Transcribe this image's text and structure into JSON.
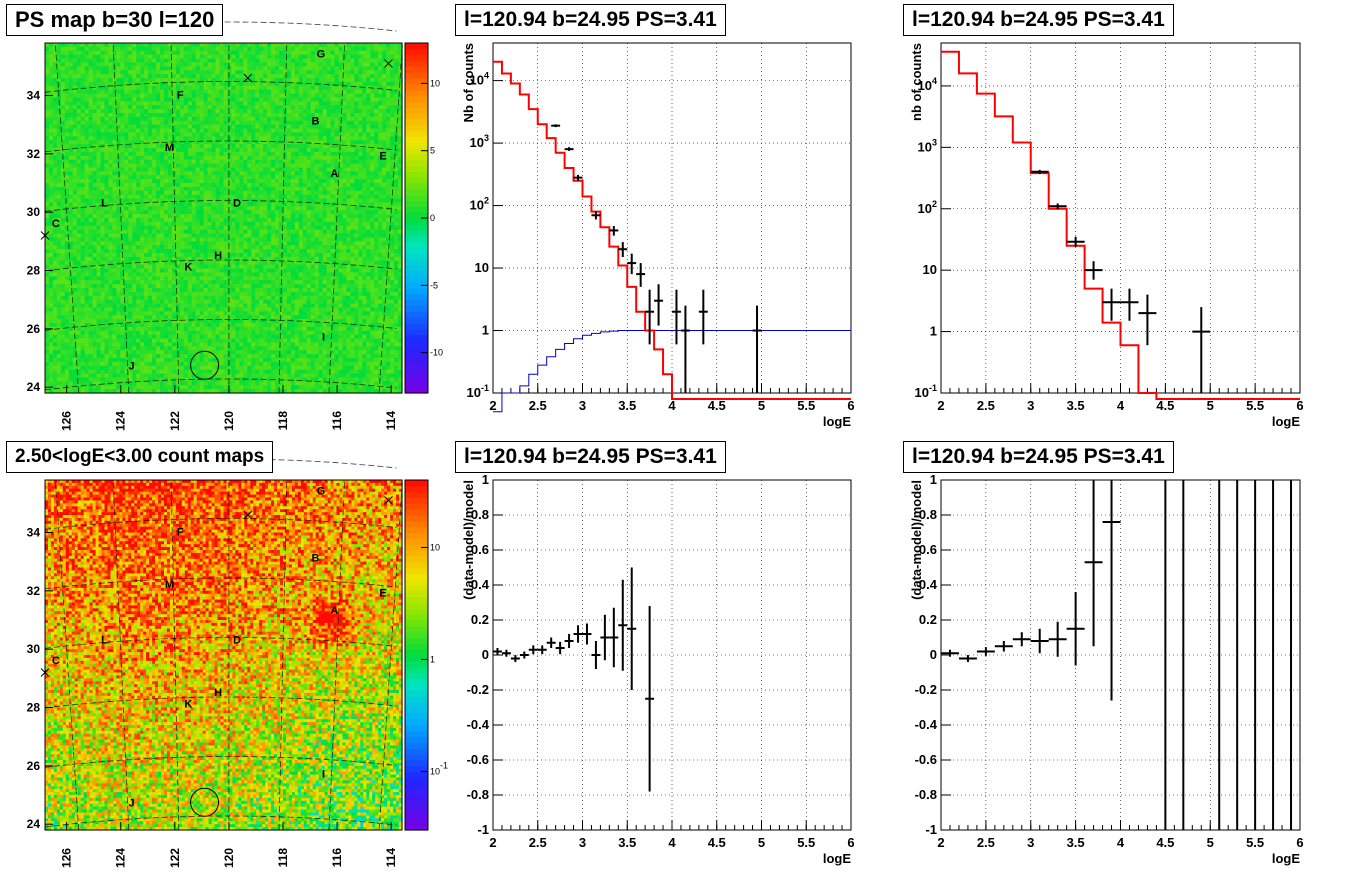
{
  "panels": {
    "ps_map_title": "PS map b=30 l=120",
    "count_map_title": "2.50<logE<3.00 count maps",
    "spectrum_title": "l=120.94 b=24.95 PS=3.41"
  },
  "maps": [
    {
      "name": "ps-map",
      "title": "PS map b=30 l=120",
      "x_ticks": [
        "126",
        "124",
        "122",
        "120",
        "118",
        "116",
        "114"
      ],
      "y_ticks": [
        "24",
        "26",
        "28",
        "30",
        "32",
        "34"
      ],
      "colorbar_ticks": [
        "10",
        "5",
        "0",
        "-5",
        "-10"
      ],
      "colorbar_scale": "linear",
      "colorbar_range": [
        -13,
        13
      ],
      "field_value": 1.0,
      "sources": [
        {
          "label": "G",
          "l": 116.6,
          "b": 35.3
        },
        {
          "label": "F",
          "l": 121.8,
          "b": 33.9
        },
        {
          "label": "B",
          "l": 116.8,
          "b": 33.0
        },
        {
          "label": "M",
          "l": 122.2,
          "b": 32.1
        },
        {
          "label": "E",
          "l": 114.3,
          "b": 31.8
        },
        {
          "label": "A",
          "l": 116.1,
          "b": 31.2
        },
        {
          "label": "D",
          "l": 119.7,
          "b": 30.2
        },
        {
          "label": "L",
          "l": 124.6,
          "b": 30.2
        },
        {
          "label": "C",
          "l": 126.4,
          "b": 29.5
        },
        {
          "label": "H",
          "l": 120.4,
          "b": 28.4
        },
        {
          "label": "K",
          "l": 121.5,
          "b": 28.0
        },
        {
          "label": "I",
          "l": 116.5,
          "b": 25.6
        },
        {
          "label": "J",
          "l": 123.6,
          "b": 24.6
        }
      ],
      "crosses": [
        {
          "l": 119.3,
          "b": 34.6
        },
        {
          "l": 114.1,
          "b": 35.1
        },
        {
          "l": 126.8,
          "b": 29.2
        }
      ],
      "circle": {
        "l": 120.9,
        "b": 24.75
      }
    },
    {
      "name": "count-map",
      "title": "2.50<logE<3.00 count maps",
      "x_ticks": [
        "126",
        "124",
        "122",
        "120",
        "118",
        "116",
        "114"
      ],
      "y_ticks": [
        "24",
        "26",
        "28",
        "30",
        "32",
        "34"
      ],
      "colorbar_ticks": [
        "10",
        "1",
        "10^-1"
      ],
      "colorbar_scale": "log",
      "colorbar_range": [
        0.03,
        40
      ],
      "sources": [
        {
          "label": "G",
          "l": 116.6,
          "b": 35.3
        },
        {
          "label": "F",
          "l": 121.8,
          "b": 33.9
        },
        {
          "label": "B",
          "l": 116.8,
          "b": 33.0
        },
        {
          "label": "M",
          "l": 122.2,
          "b": 32.1
        },
        {
          "label": "E",
          "l": 114.3,
          "b": 31.8
        },
        {
          "label": "A",
          "l": 116.1,
          "b": 31.2
        },
        {
          "label": "D",
          "l": 119.7,
          "b": 30.2
        },
        {
          "label": "L",
          "l": 124.6,
          "b": 30.2
        },
        {
          "label": "C",
          "l": 126.4,
          "b": 29.5
        },
        {
          "label": "H",
          "l": 120.4,
          "b": 28.4
        },
        {
          "label": "K",
          "l": 121.5,
          "b": 28.0
        },
        {
          "label": "I",
          "l": 116.5,
          "b": 25.6
        },
        {
          "label": "J",
          "l": 123.6,
          "b": 24.6
        }
      ],
      "crosses": [
        {
          "l": 119.3,
          "b": 34.6
        },
        {
          "l": 114.1,
          "b": 35.1
        },
        {
          "l": 126.8,
          "b": 29.2
        }
      ],
      "circle": {
        "l": 120.9,
        "b": 24.75
      }
    }
  ],
  "chart_data": [
    {
      "name": "counts-spectrum-1",
      "type": "line",
      "title": "l=120.94 b=24.95 PS=3.41",
      "xlabel": "logE",
      "ylabel": "Nb of counts",
      "xlim": [
        2,
        6
      ],
      "ylim": [
        0.1,
        40000
      ],
      "yscale": "log",
      "grid": true,
      "x_ticks": [
        "2",
        "2.5",
        "3",
        "3.5",
        "4",
        "4.5",
        "5",
        "5.5",
        "6"
      ],
      "y_ticks": [
        {
          "v": 0.1,
          "label": "10^-1"
        },
        {
          "v": 1,
          "label": "1"
        },
        {
          "v": 10,
          "label": "10"
        },
        {
          "v": 100,
          "label": "10^2"
        },
        {
          "v": 1000,
          "label": "10^3"
        },
        {
          "v": 10000,
          "label": "10^4"
        }
      ],
      "bin_edges": [
        2.0,
        2.1,
        2.2,
        2.3,
        2.4,
        2.5,
        2.6,
        2.7,
        2.8,
        2.9,
        3.0,
        3.1,
        3.2,
        3.3,
        3.4,
        3.5,
        3.6,
        3.7,
        3.8,
        3.9,
        4.0,
        4.1,
        4.2,
        4.3,
        4.4,
        4.5,
        4.6,
        4.7,
        4.8,
        4.9,
        5.0,
        5.1,
        5.2,
        5.3,
        5.4,
        5.5,
        5.6,
        5.7,
        5.8,
        5.9,
        6.0
      ],
      "model": [
        20000,
        13000,
        9000,
        6000,
        3500,
        2000,
        1200,
        700,
        400,
        250,
        140,
        80,
        45,
        22,
        11,
        5,
        2,
        1,
        0.5,
        0.2,
        0.08,
        0.08,
        0.08,
        0.08,
        0.08,
        0.08,
        0.08,
        0.08,
        0.08,
        0.08,
        0.08,
        0.08,
        0.08,
        0.08,
        0.08,
        0.08,
        0.08,
        0.08,
        0.08,
        0.08
      ],
      "psf": [
        0.01,
        0.1,
        0.1,
        0.13,
        0.2,
        0.28,
        0.38,
        0.5,
        0.62,
        0.74,
        0.84,
        0.9,
        0.95,
        0.98,
        1,
        1,
        1,
        1,
        1,
        1,
        1,
        1,
        1,
        1,
        1,
        1,
        1,
        1,
        1,
        1,
        1,
        1,
        1,
        1,
        1,
        1,
        1,
        1,
        1,
        1
      ],
      "data": [
        {
          "x": 2.95,
          "y": 280,
          "xe": 0.05,
          "lo": 250,
          "hi": 310
        },
        {
          "x": 2.7,
          "y": 1900,
          "xe": 0.05,
          "lo": 1800,
          "hi": 2000
        },
        {
          "x": 2.85,
          "y": 800,
          "xe": 0.05,
          "lo": 750,
          "hi": 860
        },
        {
          "x": 3.15,
          "y": 70,
          "xe": 0.05,
          "lo": 60,
          "hi": 80
        },
        {
          "x": 3.35,
          "y": 40,
          "xe": 0.05,
          "lo": 33,
          "hi": 47
        },
        {
          "x": 3.45,
          "y": 20,
          "xe": 0.05,
          "lo": 15,
          "hi": 26
        },
        {
          "x": 3.55,
          "y": 12,
          "xe": 0.05,
          "lo": 8,
          "hi": 17
        },
        {
          "x": 3.65,
          "y": 8,
          "xe": 0.05,
          "lo": 5,
          "hi": 12
        },
        {
          "x": 3.75,
          "y": 2,
          "xe": 0.05,
          "lo": 0.6,
          "hi": 4.5
        },
        {
          "x": 3.85,
          "y": 3,
          "xe": 0.05,
          "lo": 1.2,
          "hi": 5.5
        },
        {
          "x": 4.05,
          "y": 2,
          "xe": 0.05,
          "lo": 0.6,
          "hi": 4.5
        },
        {
          "x": 4.15,
          "y": 1,
          "xe": 0.05,
          "lo": 0.1,
          "hi": 2.5
        },
        {
          "x": 4.35,
          "y": 2,
          "xe": 0.05,
          "lo": 0.6,
          "hi": 4.5
        },
        {
          "x": 4.95,
          "y": 1,
          "xe": 0.05,
          "lo": 0.1,
          "hi": 2.5
        }
      ]
    },
    {
      "name": "counts-spectrum-2",
      "type": "line",
      "title": "l=120.94 b=24.95 PS=3.41",
      "xlabel": "logE",
      "ylabel": "nb of counts",
      "xlim": [
        2,
        6
      ],
      "ylim": [
        0.1,
        50000
      ],
      "yscale": "log",
      "grid": true,
      "x_ticks": [
        "2",
        "2.5",
        "3",
        "3.5",
        "4",
        "4.5",
        "5",
        "5.5",
        "6"
      ],
      "y_ticks": [
        {
          "v": 0.1,
          "label": "10^-1"
        },
        {
          "v": 1,
          "label": "1"
        },
        {
          "v": 10,
          "label": "10"
        },
        {
          "v": 100,
          "label": "10^2"
        },
        {
          "v": 1000,
          "label": "10^3"
        },
        {
          "v": 10000,
          "label": "10^4"
        }
      ],
      "bin_edges": [
        2.0,
        2.2,
        2.4,
        2.6,
        2.8,
        3.0,
        3.2,
        3.4,
        3.6,
        3.8,
        4.0,
        4.2,
        4.4,
        4.6,
        4.8,
        5.0,
        5.2,
        5.4,
        5.6,
        5.8,
        6.0
      ],
      "model": [
        36000,
        16000,
        7500,
        3200,
        1200,
        380,
        100,
        25,
        5,
        1.4,
        0.6,
        0.1,
        0.08,
        0.08,
        0.08,
        0.08,
        0.08,
        0.08,
        0.08,
        0.08
      ],
      "data": [
        {
          "x": 3.1,
          "y": 400,
          "xe": 0.1,
          "lo": 370,
          "hi": 430
        },
        {
          "x": 3.3,
          "y": 110,
          "xe": 0.1,
          "lo": 98,
          "hi": 122
        },
        {
          "x": 3.5,
          "y": 29,
          "xe": 0.1,
          "lo": 24,
          "hi": 35
        },
        {
          "x": 3.7,
          "y": 10,
          "xe": 0.1,
          "lo": 7,
          "hi": 14
        },
        {
          "x": 3.9,
          "y": 3,
          "xe": 0.1,
          "lo": 1.5,
          "hi": 5
        },
        {
          "x": 4.1,
          "y": 3,
          "xe": 0.1,
          "lo": 1.5,
          "hi": 5
        },
        {
          "x": 4.3,
          "y": 2,
          "xe": 0.1,
          "lo": 0.6,
          "hi": 4
        },
        {
          "x": 4.9,
          "y": 1,
          "xe": 0.1,
          "lo": 0.1,
          "hi": 2.5
        }
      ]
    },
    {
      "name": "residuals-1",
      "type": "scatter",
      "title": "l=120.94 b=24.95 PS=3.41",
      "xlabel": "logE",
      "ylabel": "(data-model)/model",
      "xlim": [
        2,
        6
      ],
      "ylim": [
        -1,
        1
      ],
      "grid": true,
      "x_ticks": [
        "2",
        "2.5",
        "3",
        "3.5",
        "4",
        "4.5",
        "5",
        "5.5",
        "6"
      ],
      "y_ticks": [
        "-1",
        "-0.8",
        "-0.6",
        "-0.4",
        "-0.2",
        "0",
        "0.2",
        "0.4",
        "0.6",
        "0.8",
        "1"
      ],
      "data": [
        {
          "x": 2.05,
          "y": 0.02,
          "xe": 0.05,
          "err": 0.02
        },
        {
          "x": 2.15,
          "y": 0.01,
          "xe": 0.05,
          "err": 0.02
        },
        {
          "x": 2.25,
          "y": -0.02,
          "xe": 0.05,
          "err": 0.02
        },
        {
          "x": 2.35,
          "y": 0.0,
          "xe": 0.05,
          "err": 0.02
        },
        {
          "x": 2.45,
          "y": 0.03,
          "xe": 0.05,
          "err": 0.025
        },
        {
          "x": 2.55,
          "y": 0.03,
          "xe": 0.05,
          "err": 0.025
        },
        {
          "x": 2.65,
          "y": 0.07,
          "xe": 0.05,
          "err": 0.03
        },
        {
          "x": 2.75,
          "y": 0.04,
          "xe": 0.05,
          "err": 0.035
        },
        {
          "x": 2.85,
          "y": 0.08,
          "xe": 0.05,
          "err": 0.04
        },
        {
          "x": 2.95,
          "y": 0.12,
          "xe": 0.05,
          "err": 0.05
        },
        {
          "x": 3.05,
          "y": 0.12,
          "xe": 0.05,
          "err": 0.06
        },
        {
          "x": 3.15,
          "y": 0.0,
          "xe": 0.05,
          "err": 0.08
        },
        {
          "x": 3.25,
          "y": 0.1,
          "xe": 0.05,
          "err": 0.13
        },
        {
          "x": 3.35,
          "y": 0.1,
          "xe": 0.05,
          "err": 0.17
        },
        {
          "x": 3.45,
          "y": 0.17,
          "xe": 0.05,
          "err": 0.26
        },
        {
          "x": 3.55,
          "y": 0.15,
          "xe": 0.05,
          "err": 0.35
        },
        {
          "x": 3.75,
          "y": -0.25,
          "xe": 0.05,
          "err": 0.53
        }
      ]
    },
    {
      "name": "residuals-2",
      "type": "scatter",
      "title": "l=120.94 b=24.95 PS=3.41",
      "xlabel": "logE",
      "ylabel": "(data-model)/model",
      "xlim": [
        2,
        6
      ],
      "ylim": [
        -1,
        1
      ],
      "grid": true,
      "x_ticks": [
        "2",
        "2.5",
        "3",
        "3.5",
        "4",
        "4.5",
        "5",
        "5.5",
        "6"
      ],
      "y_ticks": [
        "-1",
        "-0.8",
        "-0.6",
        "-0.4",
        "-0.2",
        "0",
        "0.2",
        "0.4",
        "0.6",
        "0.8",
        "1"
      ],
      "data": [
        {
          "x": 2.1,
          "y": 0.01,
          "xe": 0.1,
          "err": 0.02
        },
        {
          "x": 2.3,
          "y": -0.02,
          "xe": 0.1,
          "err": 0.02
        },
        {
          "x": 2.5,
          "y": 0.02,
          "xe": 0.1,
          "err": 0.025
        },
        {
          "x": 2.7,
          "y": 0.05,
          "xe": 0.1,
          "err": 0.03
        },
        {
          "x": 2.9,
          "y": 0.09,
          "xe": 0.1,
          "err": 0.04
        },
        {
          "x": 3.1,
          "y": 0.08,
          "xe": 0.1,
          "err": 0.07
        },
        {
          "x": 3.3,
          "y": 0.09,
          "xe": 0.1,
          "err": 0.1
        },
        {
          "x": 3.5,
          "y": 0.15,
          "xe": 0.1,
          "err": 0.21
        },
        {
          "x": 3.7,
          "y": 0.53,
          "xe": 0.1,
          "err": 0.48
        },
        {
          "x": 3.9,
          "y": 0.76,
          "xe": 0.1,
          "err": 1.02
        }
      ],
      "full_range_bars": [
        4.5,
        4.7,
        5.1,
        5.3,
        5.5,
        5.7,
        5.9
      ]
    }
  ]
}
